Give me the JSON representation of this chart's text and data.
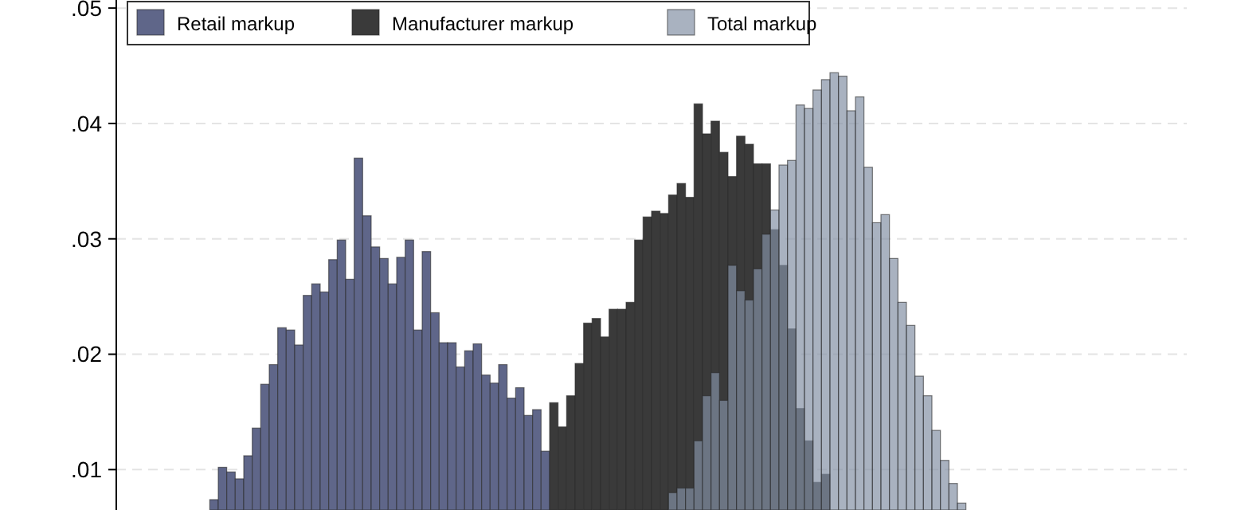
{
  "chart_data": {
    "type": "bar",
    "grid": "y",
    "legend": "top",
    "categories": [
      null,
      null,
      null,
      null,
      null,
      null,
      null,
      null,
      null,
      null,
      null,
      null,
      null,
      null,
      null,
      null,
      null,
      null,
      null,
      null,
      null,
      null,
      null,
      null,
      null,
      null,
      null,
      null,
      null,
      null,
      null,
      null,
      null,
      null,
      null,
      null,
      null,
      null,
      null,
      null,
      null,
      null,
      null,
      null,
      null,
      null,
      null,
      null,
      null,
      null,
      null,
      null,
      null,
      null,
      null,
      null,
      null,
      null,
      null,
      null,
      null,
      null,
      null,
      null,
      null,
      null,
      null,
      null,
      null,
      null,
      null,
      null,
      null,
      null,
      null,
      null,
      null,
      null,
      null,
      null,
      null,
      null,
      null,
      null,
      null,
      null,
      null,
      null,
      null,
      null,
      null,
      null,
      null,
      null,
      null,
      null,
      null,
      null,
      null,
      null,
      null,
      null,
      null,
      null,
      null,
      null,
      null,
      null,
      null,
      null,
      null,
      null,
      null,
      null,
      null,
      null,
      null,
      null,
      null,
      null,
      null,
      null,
      null,
      null,
      null,
      null
    ],
    "ylim": [
      0.0065,
      0.0507
    ],
    "yticks": [
      {
        "value": 0.01,
        "label": ".01"
      },
      {
        "value": 0.02,
        "label": ".02"
      },
      {
        "value": 0.03,
        "label": ".03"
      },
      {
        "value": 0.04,
        "label": ".04"
      },
      {
        "value": 0.05,
        "label": ".05"
      }
    ],
    "series": [
      {
        "name": "Retail markup",
        "color": "#5f6689",
        "values": [
          null,
          null,
          null,
          null,
          null,
          null,
          null,
          null,
          null,
          null,
          null,
          0.0074,
          0.0102,
          0.0098,
          0.0092,
          0.0112,
          0.0136,
          0.0174,
          0.0191,
          0.0223,
          0.0221,
          0.0208,
          0.0251,
          0.0261,
          0.0254,
          0.0282,
          0.0299,
          0.0265,
          0.037,
          0.032,
          0.0293,
          0.0283,
          0.0261,
          0.0284,
          0.0299,
          0.0221,
          0.0289,
          0.0236,
          0.021,
          0.021,
          0.0189,
          0.0203,
          0.0209,
          0.0182,
          0.0175,
          0.0191,
          0.0162,
          0.0171,
          0.0147,
          0.0152,
          0.0116,
          null,
          null,
          null,
          null,
          null,
          null,
          null,
          null,
          null,
          null,
          null,
          null,
          null,
          null,
          null,
          null,
          null,
          null,
          null,
          null,
          null,
          null,
          null,
          null,
          null,
          null,
          null,
          null,
          null,
          null,
          null,
          null,
          null,
          null,
          null,
          null,
          null,
          null,
          null,
          null,
          null,
          null,
          null,
          null,
          null,
          null,
          null,
          null,
          null,
          null,
          null,
          null,
          null,
          null,
          null,
          null,
          null,
          null,
          null,
          null,
          null,
          null,
          null,
          null,
          null,
          null,
          null,
          null,
          null,
          null,
          null,
          null,
          null,
          null,
          null
        ]
      },
      {
        "name": "Manufacturer markup",
        "color": "#3a3a3a",
        "values": [
          null,
          null,
          null,
          null,
          null,
          null,
          null,
          null,
          null,
          null,
          null,
          null,
          null,
          null,
          null,
          null,
          null,
          null,
          null,
          null,
          null,
          null,
          null,
          null,
          null,
          null,
          null,
          null,
          null,
          null,
          null,
          null,
          null,
          null,
          null,
          null,
          null,
          null,
          null,
          null,
          null,
          null,
          null,
          null,
          null,
          null,
          null,
          null,
          null,
          null,
          null,
          0.0158,
          0.0137,
          0.0164,
          0.0192,
          0.0227,
          0.0231,
          0.0215,
          0.0239,
          0.0239,
          0.0245,
          0.0299,
          0.0319,
          0.0324,
          0.0322,
          0.0338,
          0.0348,
          0.0336,
          0.0417,
          0.0391,
          0.0402,
          0.0375,
          0.0354,
          0.0389,
          0.0382,
          0.0365,
          0.0365,
          0.0308,
          0.0277,
          0.0222,
          0.0153,
          0.0125,
          0.0089,
          0.0096,
          null,
          null,
          null,
          null,
          null,
          null,
          null,
          null,
          null,
          null,
          null,
          null,
          null,
          null,
          null,
          null,
          null,
          null,
          null,
          null,
          null,
          null,
          null,
          null,
          null,
          null,
          null,
          null,
          null,
          null,
          null,
          null,
          null,
          null,
          null,
          null,
          null,
          null,
          null,
          null,
          null,
          null
        ]
      },
      {
        "name": "Total markup",
        "color": "#828fa4",
        "values": [
          null,
          null,
          null,
          null,
          null,
          null,
          null,
          null,
          null,
          null,
          null,
          null,
          null,
          null,
          null,
          null,
          null,
          null,
          null,
          null,
          null,
          null,
          null,
          null,
          null,
          null,
          null,
          null,
          null,
          null,
          null,
          null,
          null,
          null,
          null,
          null,
          null,
          null,
          null,
          null,
          null,
          null,
          null,
          null,
          null,
          null,
          null,
          null,
          null,
          null,
          null,
          null,
          null,
          null,
          null,
          null,
          null,
          null,
          null,
          null,
          null,
          null,
          null,
          null,
          null,
          0.008,
          0.0084,
          0.0084,
          0.0125,
          0.0164,
          0.0184,
          0.016,
          0.0277,
          0.0255,
          0.0247,
          0.0274,
          0.0304,
          0.0325,
          0.0364,
          0.0368,
          0.0416,
          0.0413,
          0.0429,
          0.0438,
          0.0444,
          0.0441,
          0.0411,
          0.0423,
          0.0362,
          0.0314,
          0.0321,
          0.0283,
          0.0245,
          0.0225,
          0.0181,
          0.0164,
          0.0134,
          0.0108,
          0.0088,
          0.0071,
          null,
          null,
          null,
          null,
          null,
          null,
          null,
          null,
          null,
          null,
          null,
          null,
          null,
          null,
          null,
          null,
          null,
          null,
          null,
          null,
          null,
          null,
          null,
          null,
          null,
          null
        ]
      }
    ]
  }
}
